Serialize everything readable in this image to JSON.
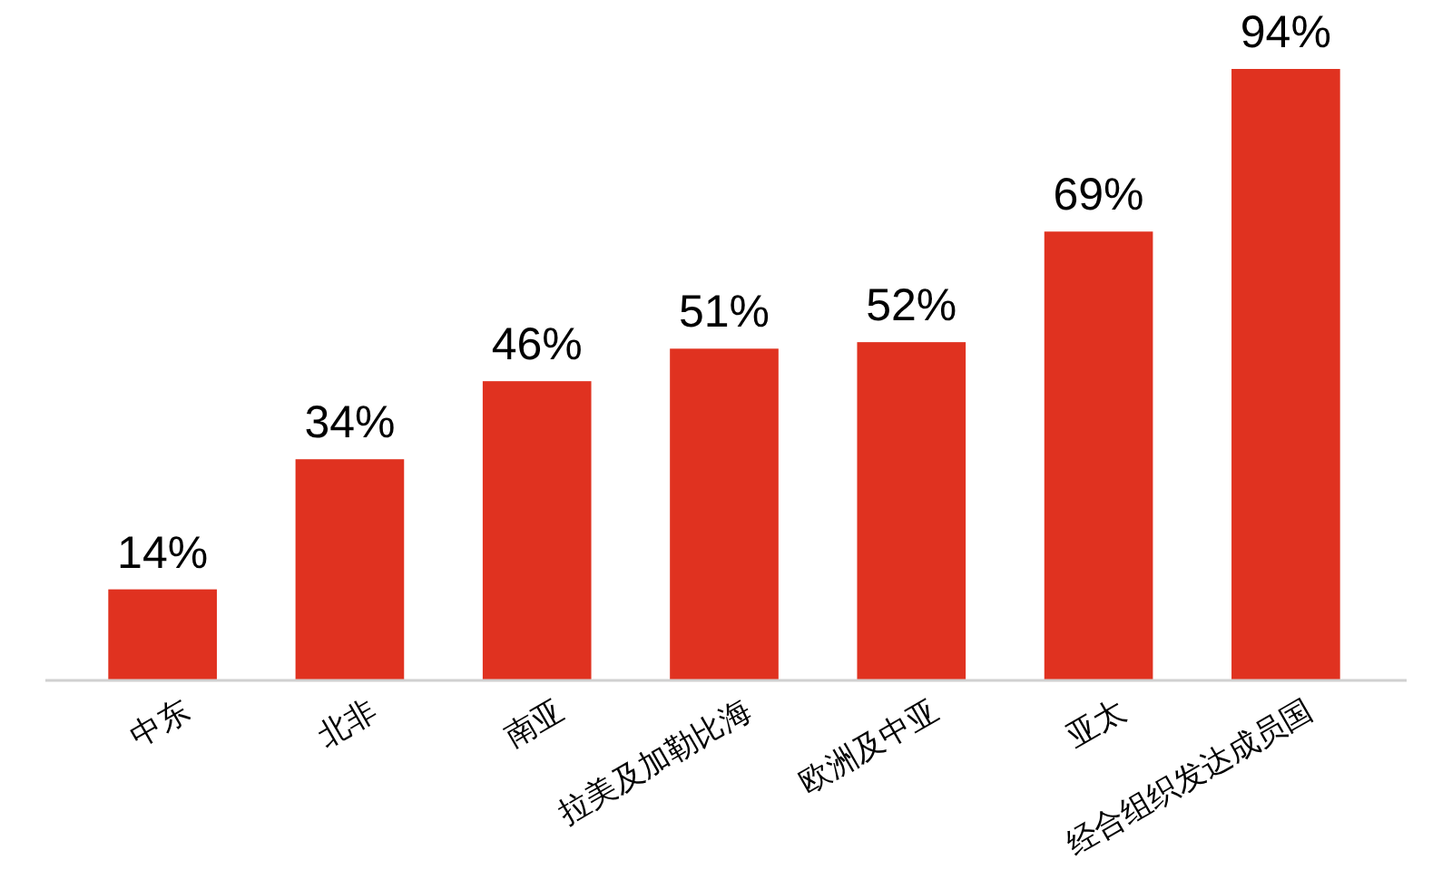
{
  "chart_data": {
    "type": "bar",
    "categories": [
      "中东",
      "北非",
      "南亚",
      "拉美及加勒比海",
      "欧洲及中亚",
      "亚太",
      "经合组织发达成员国"
    ],
    "values": [
      14,
      34,
      46,
      51,
      52,
      69,
      94
    ],
    "value_labels": [
      "14%",
      "34%",
      "46%",
      "51%",
      "52%",
      "69%",
      "94%"
    ],
    "color": "#e03220"
  }
}
